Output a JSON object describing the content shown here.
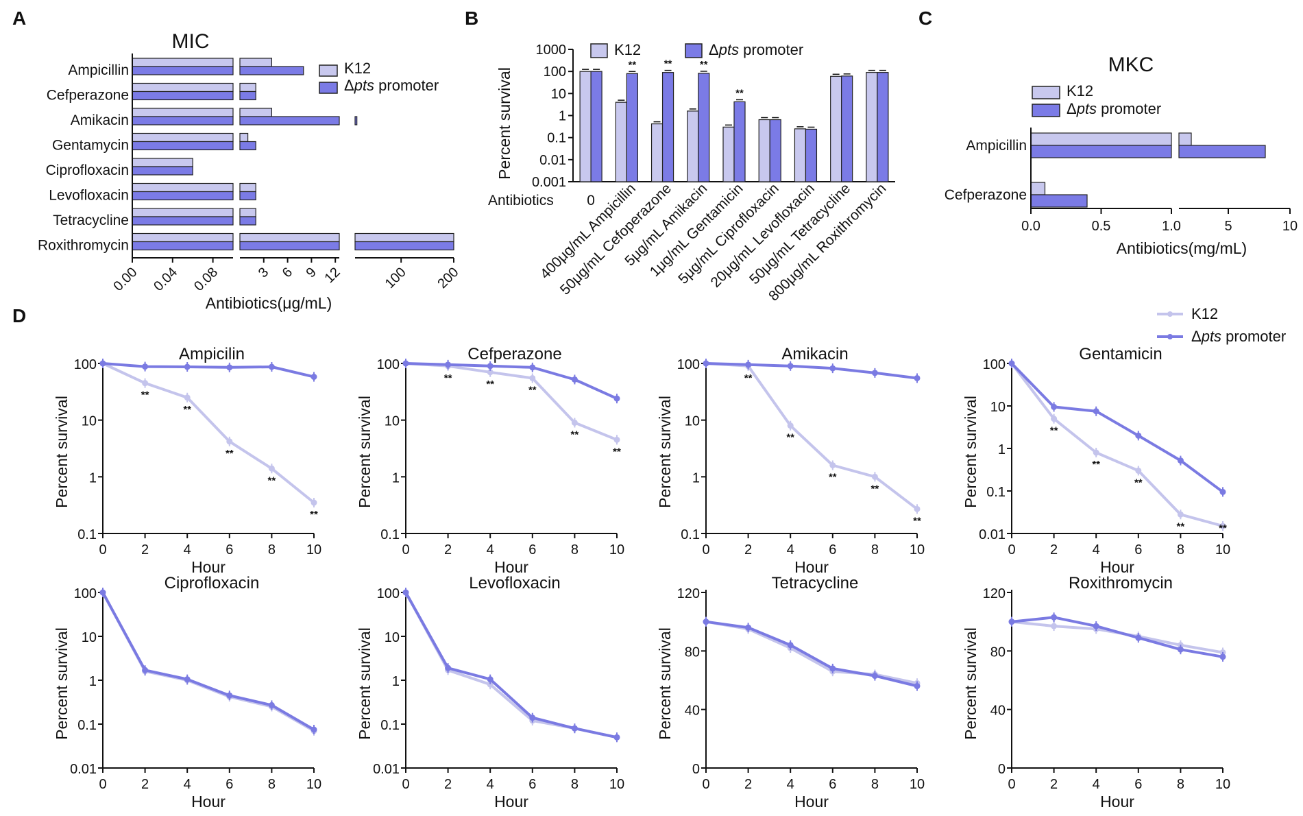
{
  "colors": {
    "k12": "#c8c8ee",
    "mutant": "#7b7be6",
    "k12_line": "#c4c4ec",
    "mutant_line": "#7a7ae2",
    "axis": "#111111"
  },
  "legend": {
    "k12": "K12",
    "mutant_prefix": "Δ",
    "mutant_italic": "pts",
    "mutant_suffix": " promoter"
  },
  "chart_data": [
    {
      "id": "A",
      "type": "bar",
      "orientation": "horizontal",
      "title": "MIC",
      "xlabel": "Antibiotics(μg/mL)",
      "categories": [
        "Ampicillin",
        "Cefperazone",
        "Amikacin",
        "Gentamycin",
        "Ciprofloxacin",
        "Levofloxacin",
        "Tetracycline",
        "Roxithromycin"
      ],
      "series": [
        {
          "name": "K12",
          "values": [
            4,
            2,
            4,
            1,
            0.06,
            2,
            2,
            200
          ]
        },
        {
          "name": "Δpts promoter",
          "values": [
            8,
            2,
            16,
            2,
            0.06,
            2,
            2,
            200
          ]
        }
      ],
      "x_segments": [
        {
          "range": [
            0,
            0.1
          ],
          "ticks": [
            "0.00",
            "0.04",
            "0.08"
          ],
          "tick_values": [
            0,
            0.04,
            0.08
          ]
        },
        {
          "range": [
            0,
            12.5
          ],
          "ticks": [
            "3",
            "6",
            "9",
            "12"
          ],
          "tick_values": [
            3,
            6,
            9,
            12
          ]
        },
        {
          "range": [
            0,
            200
          ],
          "ticks": [
            "100",
            "200"
          ],
          "tick_values": [
            100,
            200
          ]
        }
      ]
    },
    {
      "id": "B",
      "type": "bar",
      "orientation": "vertical",
      "scale": "log",
      "ylabel": "Percent survival",
      "xlabel_prefix": "Antibiotics",
      "yticks": [
        "1000",
        "100",
        "10",
        "1",
        "0.1",
        "0.01",
        "0.001"
      ],
      "categories": [
        "0",
        "400μg/mL Ampicillin",
        "50μg/mL Cefoperazone",
        "5μg/mL Amikacin",
        "1μg/mL Gentamicin",
        "5μg/mL Ciprofloxacin",
        "20μg/mL Levofloxacin",
        "50μg/mL Tetracycline",
        "800μg/mL Roxithromycin"
      ],
      "series": [
        {
          "name": "K12",
          "values": [
            100,
            4,
            0.42,
            1.6,
            0.3,
            0.65,
            0.25,
            60,
            90
          ]
        },
        {
          "name": "Δpts promoter",
          "values": [
            100,
            80,
            90,
            82,
            4.2,
            0.65,
            0.24,
            62,
            90
          ]
        }
      ],
      "significance": [
        "",
        "**",
        "**",
        "**",
        "**",
        "",
        "",
        "",
        ""
      ]
    },
    {
      "id": "C",
      "type": "bar",
      "orientation": "horizontal",
      "title": "MKC",
      "xlabel": "Antibiotics(mg/mL)",
      "categories": [
        "Ampicillin",
        "Cefperazone"
      ],
      "series": [
        {
          "name": "K12",
          "values": [
            2,
            0.1
          ]
        },
        {
          "name": "Δpts promoter",
          "values": [
            8,
            0.4
          ]
        }
      ],
      "x_segments": [
        {
          "range": [
            0,
            1.0
          ],
          "ticks": [
            "0.0",
            "0.5",
            "1.0"
          ],
          "tick_values": [
            0,
            0.5,
            1.0
          ]
        },
        {
          "range": [
            1,
            10
          ],
          "ticks": [
            "5",
            "10"
          ],
          "tick_values": [
            5,
            10
          ]
        }
      ]
    }
  ],
  "time_courses": {
    "panel_letter": "D",
    "x": [
      0,
      2,
      4,
      6,
      8,
      10
    ],
    "xlabel": "Hour",
    "ylabel": "Percent survival",
    "plots": [
      {
        "title": "Ampicilin",
        "scale": "log",
        "yticks": [
          "100",
          "10",
          "1",
          "0.1"
        ],
        "k12": [
          100,
          45,
          25,
          4.2,
          1.4,
          0.35
        ],
        "mutant": [
          100,
          88,
          87,
          85,
          87,
          58
        ],
        "stars": [
          "",
          "**",
          "**",
          "**",
          "**",
          "**"
        ]
      },
      {
        "title": "Cefperazone",
        "scale": "log",
        "yticks": [
          "100",
          "10",
          "1",
          "0.1"
        ],
        "k12": [
          100,
          90,
          70,
          55,
          9,
          4.5
        ],
        "mutant": [
          100,
          95,
          90,
          85,
          52,
          24
        ],
        "stars": [
          "",
          "**",
          "**",
          "**",
          "**",
          "**"
        ]
      },
      {
        "title": "Amikacin",
        "scale": "log",
        "yticks": [
          "100",
          "10",
          "1",
          "0.1"
        ],
        "k12": [
          100,
          90,
          8,
          1.6,
          1.0,
          0.27
        ],
        "mutant": [
          100,
          95,
          90,
          82,
          68,
          55
        ],
        "stars": [
          "",
          "**",
          "**",
          "**",
          "**",
          "**"
        ]
      },
      {
        "title": "Gentamicin",
        "scale": "log",
        "yticks": [
          "100",
          "10",
          "1",
          "0.1",
          "0.01"
        ],
        "k12": [
          100,
          5,
          0.8,
          0.3,
          0.028,
          0.015
        ],
        "mutant": [
          100,
          9.5,
          7.5,
          2.0,
          0.52,
          0.095
        ],
        "stars": [
          "",
          "**",
          "**",
          "**",
          "**",
          "**"
        ]
      },
      {
        "title": "Ciprofloxacin",
        "scale": "log",
        "yticks": [
          "100",
          "10",
          "1",
          "0.1",
          "0.01"
        ],
        "k12": [
          100,
          1.6,
          1.0,
          0.42,
          0.25,
          0.07
        ],
        "mutant": [
          100,
          1.7,
          1.05,
          0.45,
          0.27,
          0.075
        ],
        "stars": [
          "",
          "",
          "",
          "",
          "",
          ""
        ]
      },
      {
        "title": "Levofloxacin",
        "scale": "log",
        "yticks": [
          "100",
          "10",
          "1",
          "0.1",
          "0.01"
        ],
        "k12": [
          100,
          1.7,
          0.8,
          0.12,
          0.08,
          0.05
        ],
        "mutant": [
          100,
          1.9,
          1.05,
          0.14,
          0.08,
          0.05
        ],
        "stars": [
          "",
          "",
          "",
          "",
          "",
          ""
        ]
      },
      {
        "title": "Tetracycline",
        "scale": "linear",
        "yticks": [
          "120",
          "80",
          "40",
          "0"
        ],
        "k12": [
          100,
          95,
          82,
          66,
          64,
          58
        ],
        "mutant": [
          100,
          96,
          84,
          68,
          63,
          56
        ],
        "stars": [
          "",
          "",
          "",
          "",
          "",
          ""
        ]
      },
      {
        "title": "Roxithromycin",
        "scale": "linear",
        "yticks": [
          "120",
          "80",
          "40",
          "0"
        ],
        "k12": [
          100,
          97,
          95,
          90,
          84,
          79
        ],
        "mutant": [
          100,
          103,
          97,
          89,
          81,
          76
        ],
        "stars": [
          "",
          "",
          "",
          "",
          "",
          ""
        ]
      }
    ]
  }
}
